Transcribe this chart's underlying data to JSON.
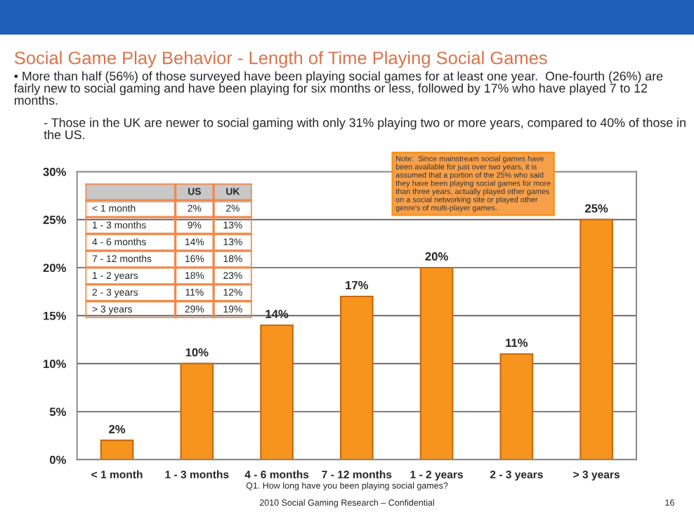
{
  "chart_data": {
    "type": "bar",
    "title": "Social Game Play Behavior - Length of Time Playing Social Games",
    "subtitle": "• More than half (56%) of those surveyed have been playing social games for at least one year.  One-fourth (26%) are fairly new to social gaming and have been playing for six months or less, followed by 17% who have played 7 to 12 months.",
    "categories": [
      "< 1 month",
      "1 - 3 months",
      "4 - 6 months",
      "7 - 12 months",
      "1 - 2 years",
      "2 - 3 years",
      "> 3 years"
    ],
    "values": [
      2,
      10,
      14,
      17,
      20,
      11,
      25
    ],
    "value_labels": [
      "2%",
      "10%",
      "14%",
      "17%",
      "20%",
      "11%",
      "25%"
    ],
    "color": "#f7941d",
    "ylim": [
      0,
      30
    ],
    "yticks": [
      {
        "value": 0,
        "label": "0%"
      },
      {
        "value": 5,
        "label": "5%"
      },
      {
        "value": 10,
        "label": "10%"
      },
      {
        "value": 15,
        "label": "15%"
      },
      {
        "value": 20,
        "label": "20%"
      },
      {
        "value": 25,
        "label": "25%"
      },
      {
        "value": 30,
        "label": "30%"
      }
    ],
    "grid": "y",
    "annotations": [
      "- Those in the UK are newer to social gaming with only 31% playing two or more years, compared to 40% of those in the US.",
      "Note:  Since mainstream social games have been available for just over two years, it is assumed that a portion of the 25% who said they have been playing social games for more than three years, actually played other games on a social networking site or played other genre's of multi-player games.",
      "Q1. How long have you been playing social games?",
      "2010 Social Gaming Research – Confidential",
      "16",
      "US",
      "UK",
      "< 1 month",
      "2%",
      "2%",
      "1 - 3 months",
      "9%",
      "13%",
      "4 - 6 months",
      "14%",
      "13%",
      "7 - 12 months",
      "16%",
      "18%",
      "1 - 2 years",
      "18%",
      "23%",
      "2 - 3 years",
      "11%",
      "12%",
      "> 3 years",
      "29%",
      "19%"
    ]
  }
}
